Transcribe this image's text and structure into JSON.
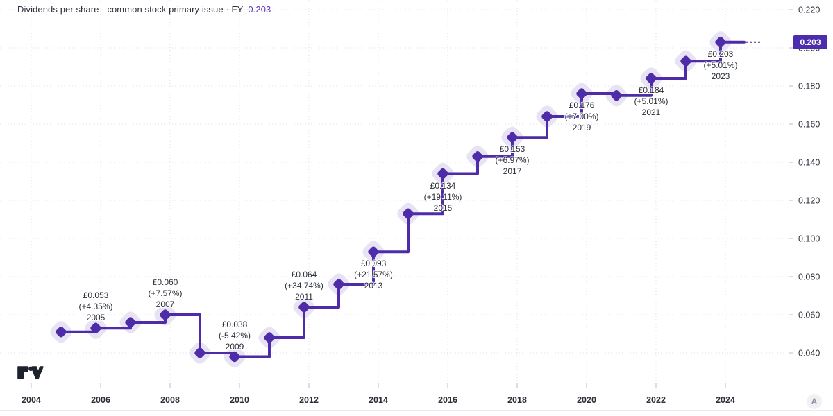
{
  "header": {
    "title": "Dividends per share · common stock primary issue · FY",
    "value": "0.203"
  },
  "footer": {
    "attribution_label": "A"
  },
  "colors": {
    "accent": "#4e2ba7",
    "halo": "#e7e3f5",
    "badge_bg": "#4c2dae",
    "badge_text": "#ffffff",
    "label_text": "#2b2f3a",
    "axis_text": "#2a2e39",
    "grid": "#dde0e9",
    "tick": "#b9bdc9",
    "logo": "#1e222d"
  },
  "chart_data": {
    "type": "line",
    "subtype": "step-with-diamond-markers",
    "title": "Dividends per share · common stock primary issue · FY 0.203",
    "currency_symbol": "£",
    "last_value": "0.203",
    "legend_position": "none",
    "grid": "dotted",
    "ylim": [
      0.025,
      0.225
    ],
    "y_axis": {
      "side": "right",
      "ticks": [
        "0.220",
        "0.200",
        "0.180",
        "0.160",
        "0.140",
        "0.120",
        "0.100",
        "0.080",
        "0.060",
        "0.040"
      ],
      "min": 0.04,
      "max": 0.22,
      "step": 0.02
    },
    "x_axis": {
      "ticks": [
        "2004",
        "2006",
        "2008",
        "2010",
        "2012",
        "2014",
        "2016",
        "2018",
        "2020",
        "2022",
        "2024"
      ]
    },
    "points": [
      {
        "year": 2004,
        "value": 0.051
      },
      {
        "year": 2005,
        "value": 0.053,
        "label": {
          "price": "£0.053",
          "change": "(+4.35%)",
          "year": "2005",
          "position": "above"
        }
      },
      {
        "year": 2006,
        "value": 0.056
      },
      {
        "year": 2007,
        "value": 0.06,
        "label": {
          "price": "£0.060",
          "change": "(+7.57%)",
          "year": "2007",
          "position": "above"
        }
      },
      {
        "year": 2008,
        "value": 0.04
      },
      {
        "year": 2009,
        "value": 0.038,
        "label": {
          "price": "£0.038",
          "change": "(-5.42%)",
          "year": "2009",
          "position": "above"
        }
      },
      {
        "year": 2010,
        "value": 0.048
      },
      {
        "year": 2011,
        "value": 0.064,
        "label": {
          "price": "£0.064",
          "change": "(+34.74%)",
          "year": "2011",
          "position": "above"
        }
      },
      {
        "year": 2012,
        "value": 0.076
      },
      {
        "year": 2013,
        "value": 0.093,
        "label": {
          "price": "£0.093",
          "change": "(+21.57%)",
          "year": "2013",
          "position": "below"
        }
      },
      {
        "year": 2014,
        "value": 0.113
      },
      {
        "year": 2015,
        "value": 0.134,
        "label": {
          "price": "£0.134",
          "change": "(+19.11%)",
          "year": "2015",
          "position": "below"
        }
      },
      {
        "year": 2016,
        "value": 0.143
      },
      {
        "year": 2017,
        "value": 0.153,
        "label": {
          "price": "£0.153",
          "change": "(+6.97%)",
          "year": "2017",
          "position": "below"
        }
      },
      {
        "year": 2018,
        "value": 0.164
      },
      {
        "year": 2019,
        "value": 0.176,
        "label": {
          "price": "£0.176",
          "change": "(+7.00%)",
          "year": "2019",
          "position": "below"
        }
      },
      {
        "year": 2020,
        "value": 0.175
      },
      {
        "year": 2021,
        "value": 0.184,
        "label": {
          "price": "£0.184",
          "change": "(+5.01%)",
          "year": "2021",
          "position": "below"
        }
      },
      {
        "year": 2022,
        "value": 0.193
      },
      {
        "year": 2023,
        "value": 0.203,
        "label": {
          "price": "£0.203",
          "change": "(+5.01%)",
          "year": "2023",
          "position": "below"
        }
      }
    ]
  }
}
